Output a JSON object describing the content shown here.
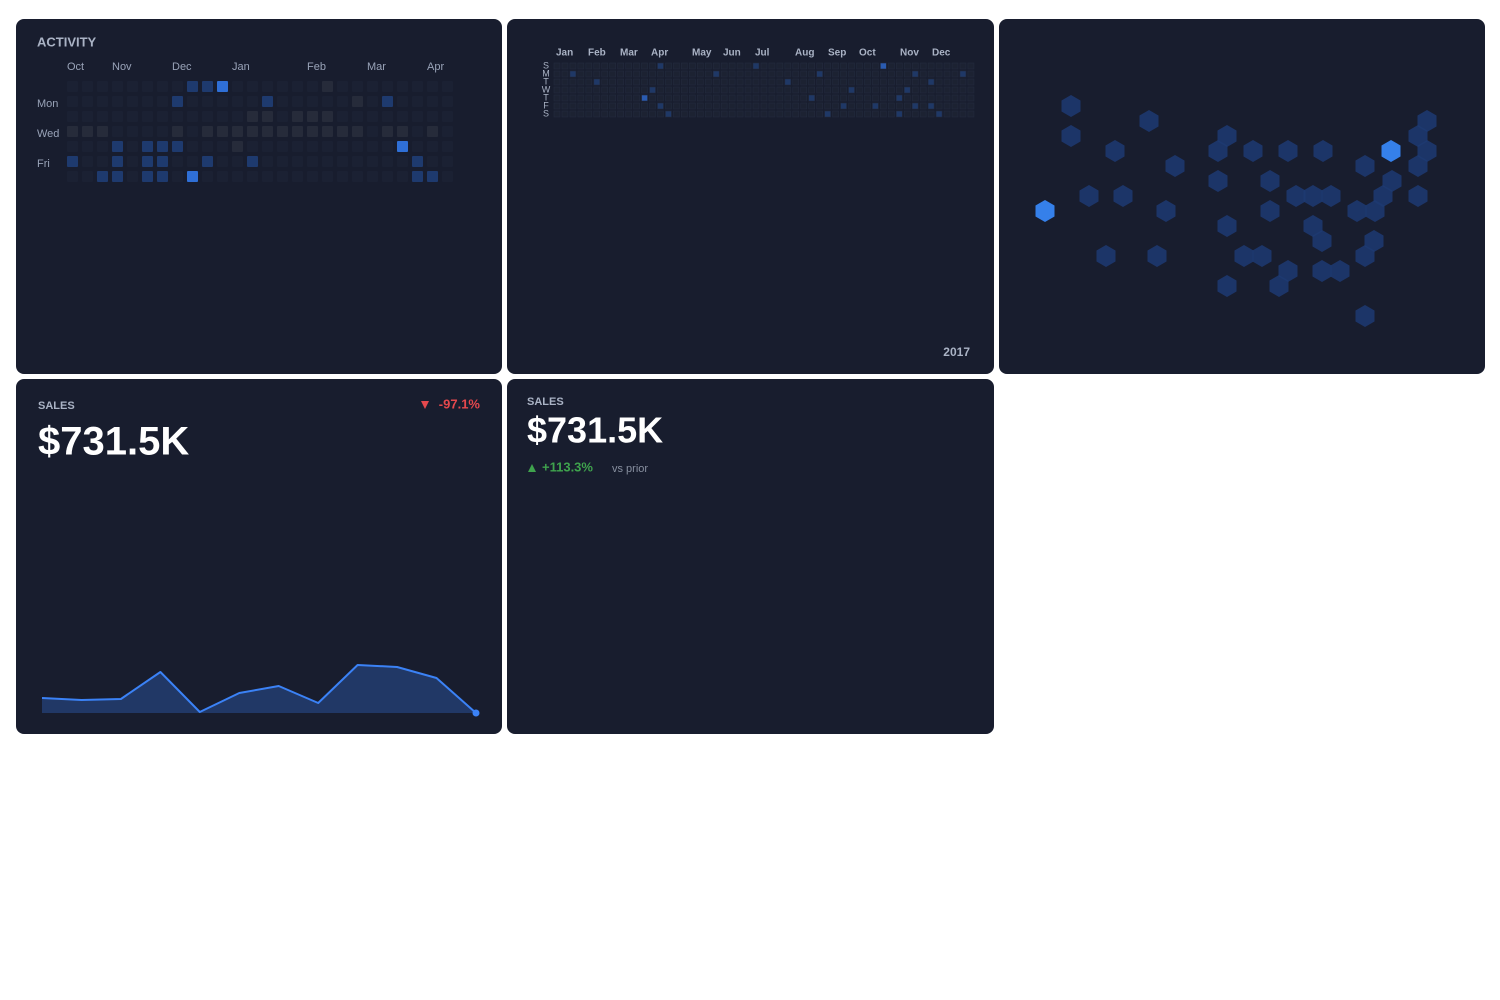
{
  "activity": {
    "title": "ACTIVITY",
    "months": [
      "Oct",
      "Nov",
      "Dec",
      "Jan",
      "Feb",
      "Mar",
      "Apr"
    ],
    "days": [
      "Mon",
      "Wed",
      "Fri"
    ],
    "cells": [
      [
        null,
        null,
        null,
        null,
        null,
        null,
        null,
        null,
        1,
        1,
        2,
        null,
        null,
        null,
        null,
        null,
        null,
        0,
        null,
        null,
        null,
        null,
        null,
        null,
        null,
        null
      ],
      [
        null,
        null,
        null,
        null,
        null,
        null,
        null,
        1,
        null,
        null,
        null,
        null,
        null,
        1,
        null,
        null,
        null,
        null,
        null,
        0,
        null,
        1,
        null,
        null,
        null,
        null
      ],
      [
        null,
        null,
        null,
        null,
        null,
        null,
        null,
        null,
        null,
        null,
        null,
        null,
        0,
        0,
        null,
        0,
        0,
        0,
        null,
        null,
        null,
        null,
        null,
        null,
        null,
        null
      ],
      [
        0,
        0,
        0,
        null,
        null,
        null,
        null,
        0,
        null,
        0,
        0,
        0,
        0,
        0,
        0,
        0,
        0,
        0,
        0,
        0,
        null,
        0,
        0,
        null,
        0,
        null
      ],
      [
        null,
        null,
        null,
        1,
        null,
        1,
        1,
        1,
        null,
        null,
        null,
        0,
        null,
        null,
        null,
        null,
        null,
        null,
        null,
        null,
        null,
        null,
        2,
        null,
        null,
        null
      ],
      [
        1,
        null,
        null,
        1,
        null,
        1,
        1,
        null,
        null,
        1,
        null,
        null,
        1,
        null,
        null,
        null,
        null,
        null,
        null,
        null,
        null,
        null,
        null,
        1,
        null,
        null
      ],
      [
        null,
        null,
        1,
        1,
        null,
        1,
        1,
        null,
        2,
        null,
        null,
        null,
        null,
        null,
        null,
        null,
        null,
        null,
        null,
        null,
        null,
        null,
        null,
        1,
        1,
        null
      ]
    ]
  },
  "calendar": {
    "months": [
      "Jan",
      "Feb",
      "Mar",
      "Apr",
      "May",
      "Jun",
      "Jul",
      "Aug",
      "Sep",
      "Oct",
      "Nov",
      "Dec"
    ],
    "weekdays": [
      "S",
      "M",
      "T",
      "W",
      "T",
      "F",
      "S"
    ],
    "year": "2017",
    "cells": [
      [
        0,
        0,
        0,
        0,
        0,
        0,
        0,
        0,
        0,
        0,
        0,
        0,
        0,
        1,
        0,
        0,
        0,
        0,
        0,
        0,
        0,
        0,
        0,
        0,
        0,
        1,
        0,
        0,
        0,
        0,
        0,
        0,
        0,
        0,
        0,
        0,
        0,
        0,
        0,
        0,
        0,
        2,
        0,
        0,
        0,
        0,
        0,
        0,
        0,
        0,
        0,
        0,
        0
      ],
      [
        0,
        0,
        1,
        0,
        0,
        0,
        0,
        0,
        0,
        0,
        0,
        0,
        0,
        0,
        0,
        0,
        0,
        0,
        0,
        0,
        1,
        0,
        0,
        0,
        0,
        0,
        0,
        0,
        0,
        0,
        0,
        0,
        0,
        1,
        0,
        0,
        0,
        0,
        0,
        0,
        0,
        0,
        0,
        0,
        0,
        1,
        0,
        0,
        0,
        0,
        0,
        1,
        0
      ],
      [
        0,
        0,
        0,
        0,
        0,
        1,
        0,
        0,
        0,
        0,
        0,
        0,
        0,
        0,
        0,
        0,
        0,
        0,
        0,
        0,
        0,
        0,
        0,
        0,
        0,
        0,
        0,
        0,
        0,
        1,
        0,
        0,
        0,
        0,
        0,
        0,
        0,
        0,
        0,
        0,
        0,
        0,
        0,
        0,
        0,
        0,
        0,
        1,
        0,
        0,
        0,
        0,
        0
      ],
      [
        0,
        0,
        0,
        0,
        0,
        0,
        0,
        0,
        0,
        0,
        0,
        0,
        1,
        0,
        0,
        0,
        0,
        0,
        0,
        0,
        0,
        0,
        0,
        0,
        0,
        0,
        0,
        0,
        0,
        0,
        0,
        0,
        0,
        0,
        0,
        0,
        0,
        1,
        0,
        0,
        0,
        0,
        0,
        0,
        1,
        0,
        0,
        0,
        0,
        0,
        0,
        0,
        0
      ],
      [
        0,
        0,
        0,
        0,
        0,
        0,
        0,
        0,
        0,
        0,
        0,
        2,
        0,
        0,
        0,
        0,
        0,
        0,
        0,
        0,
        0,
        0,
        0,
        0,
        0,
        0,
        0,
        0,
        0,
        0,
        0,
        0,
        1,
        0,
        0,
        0,
        0,
        0,
        0,
        0,
        0,
        0,
        0,
        1,
        0,
        0,
        0,
        0,
        0,
        0,
        0,
        0,
        0
      ],
      [
        0,
        0,
        0,
        0,
        0,
        0,
        0,
        0,
        0,
        0,
        0,
        0,
        0,
        1,
        0,
        0,
        0,
        0,
        0,
        0,
        0,
        0,
        0,
        0,
        0,
        0,
        0,
        0,
        0,
        0,
        0,
        0,
        0,
        0,
        0,
        0,
        1,
        0,
        0,
        0,
        1,
        0,
        0,
        0,
        0,
        1,
        0,
        1,
        0,
        0,
        0,
        0,
        0
      ],
      [
        0,
        0,
        0,
        0,
        0,
        0,
        0,
        0,
        0,
        0,
        0,
        0,
        0,
        0,
        1,
        0,
        0,
        0,
        0,
        0,
        0,
        0,
        0,
        0,
        0,
        0,
        0,
        0,
        0,
        0,
        0,
        0,
        0,
        0,
        1,
        0,
        0,
        0,
        0,
        0,
        0,
        0,
        0,
        1,
        0,
        0,
        0,
        0,
        1,
        0,
        0,
        0,
        0
      ]
    ]
  },
  "hexmap": {
    "values": [
      1,
      1,
      1,
      1,
      1,
      1,
      1,
      2,
      1,
      1,
      1,
      1,
      1,
      1,
      1,
      1,
      1,
      1,
      1,
      1,
      1,
      1,
      1,
      1,
      1,
      1,
      1,
      1,
      1,
      1,
      1,
      1,
      1,
      1,
      2,
      1,
      1,
      1,
      1,
      1,
      1,
      1,
      1,
      1,
      1,
      1
    ]
  },
  "sales_trend": {
    "label": "SALES",
    "value": "$731.5K",
    "change": "-97.1%",
    "values": [
      15,
      13,
      14,
      41,
      1,
      20,
      27,
      10,
      48,
      46,
      35,
      0
    ]
  },
  "sales_kpi": {
    "label": "SALES",
    "value": "$731.5K",
    "change": "+113.3%",
    "comparison": "vs prior"
  }
}
